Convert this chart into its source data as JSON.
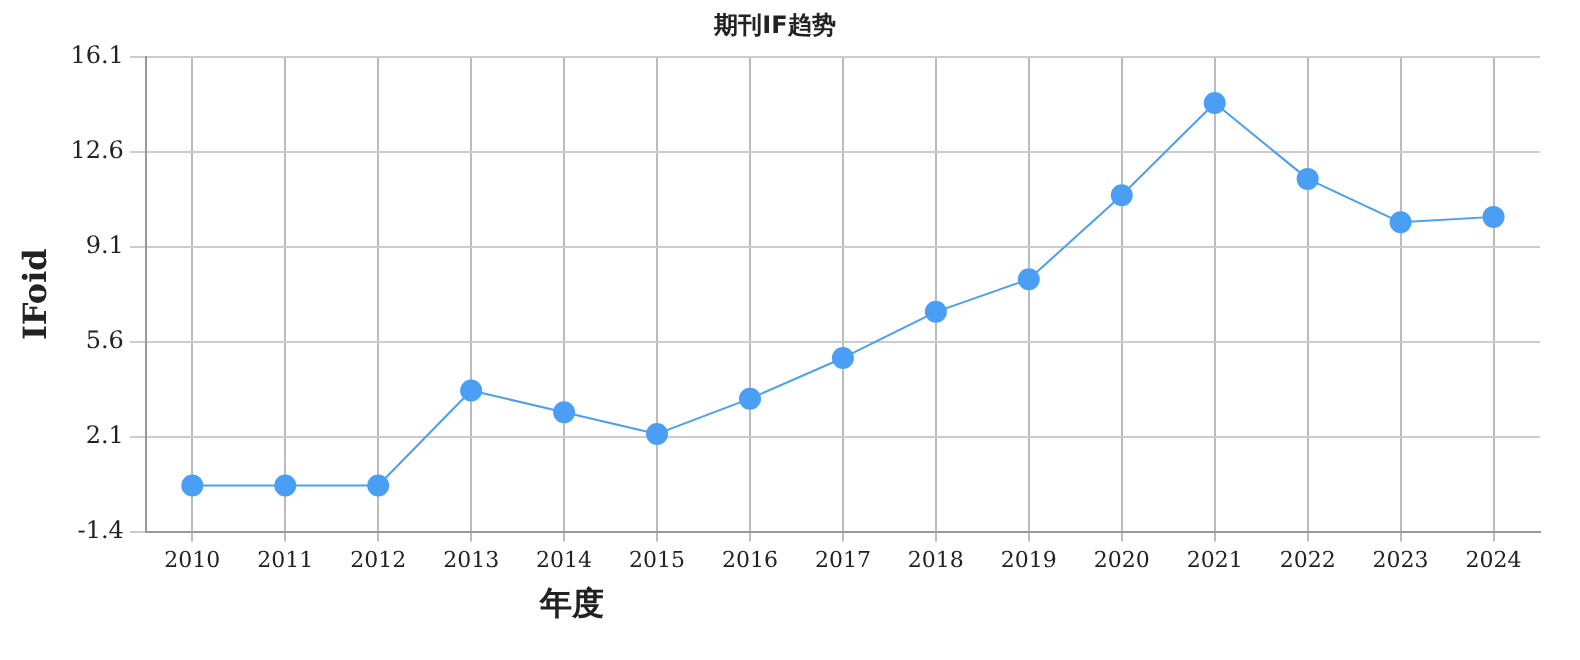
{
  "chart_data": {
    "type": "line",
    "title": "期刊IF趋势",
    "xlabel": "年度",
    "ylabel": "IFoid",
    "categories": [
      "2010",
      "2011",
      "2012",
      "2013",
      "2014",
      "2015",
      "2016",
      "2017",
      "2018",
      "2019",
      "2020",
      "2021",
      "2022",
      "2023",
      "2024"
    ],
    "series": [
      {
        "color": "#4a9ff5",
        "values": [
          0.3,
          0.3,
          0.3,
          3.8,
          3.0,
          2.2,
          3.5,
          5.0,
          6.7,
          7.9,
          11.0,
          14.4,
          11.6,
          10.0,
          10.2
        ]
      }
    ],
    "ylim": [
      -1.4,
      16.1
    ],
    "yticks": [
      -1.4,
      2.1,
      5.6,
      9.1,
      12.6,
      16.1
    ],
    "grid": true,
    "legend": false,
    "marker": "circle",
    "line_style": "solid"
  }
}
